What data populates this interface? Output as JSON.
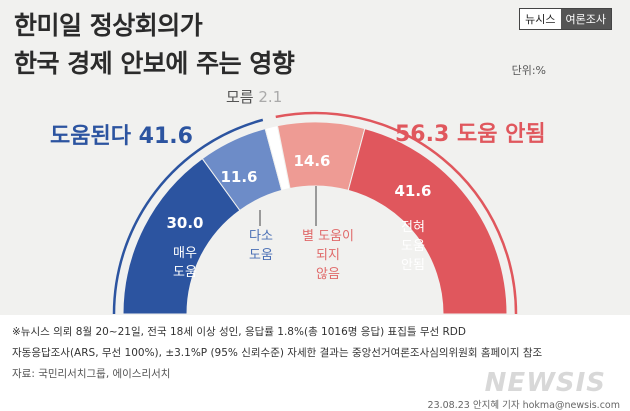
{
  "title": {
    "line1": "한미일 정상회의가",
    "line2": "한국 경제 안보에 주는 영향"
  },
  "brand": {
    "left": "뉴시스",
    "right": "여론조사"
  },
  "unit_label": "단위:%",
  "summary": {
    "help": {
      "label": "도움된다",
      "value": "41.6"
    },
    "no_help": {
      "value": "56.3",
      "label": "도움 안됨"
    },
    "dont_know": {
      "label": "모름",
      "value": "2.1"
    }
  },
  "chart_data": {
    "type": "pie",
    "subtype": "half-donut",
    "unit": "%",
    "slices": [
      {
        "label": "매우 도움",
        "value": 30.0,
        "color": "#2c54a0"
      },
      {
        "label": "다소 도움",
        "value": 11.6,
        "color": "#6d8cc8"
      },
      {
        "label": "모름",
        "value": 2.1,
        "color": "#ffffff"
      },
      {
        "label": "별 도움이 되지 않음",
        "value": 14.6,
        "color": "#ee9b94"
      },
      {
        "label": "전혀 도움 안됨",
        "value": 41.6,
        "color": "#e0575d"
      }
    ]
  },
  "segments": {
    "very": {
      "value": "30.0",
      "l1": "매우",
      "l2": "도움"
    },
    "some": {
      "value": "11.6",
      "l1": "다소",
      "l2": "도움"
    },
    "not_much": {
      "value": "14.6",
      "l1": "별 도움이",
      "l2": "되지",
      "l3": "않음"
    },
    "not_at_all": {
      "value": "41.6",
      "l1": "전혀",
      "l2": "도움",
      "l3": "안됨"
    }
  },
  "notes": {
    "line1": "※뉴시스 의뢰 8월 20~21일, 전국 18세 이상 성인, 응답률 1.8%(총 1016명 응답) 표집틀 무선 RDD",
    "line2": "자동응답조사(ARS, 무선 100%), ±3.1%P (95% 신뢰수준) 자세한 결과는 중앙선거여론조사심의위원회 홈페이지 참조",
    "line3": "자료: 국민리서치그룹, 에이스리서치"
  },
  "watermark": "NEWSIS",
  "credit": "23.08.23 안지혜 기자 hokma@newsis.com"
}
